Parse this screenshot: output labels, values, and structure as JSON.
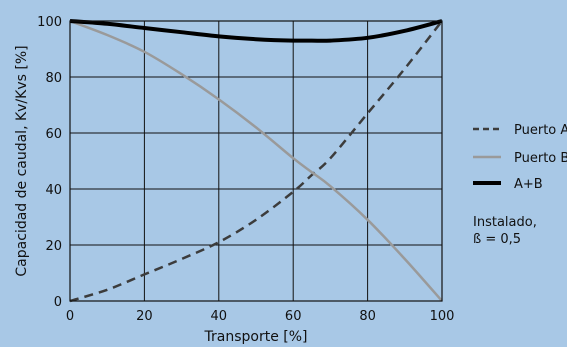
{
  "chart_data": {
    "type": "line",
    "xlabel": "Transporte [%]",
    "ylabel": "Capacidad de caudal, Kv/Kvs [%]",
    "xlim": [
      0,
      100
    ],
    "ylim": [
      0,
      100
    ],
    "xticks": [
      0,
      20,
      40,
      60,
      80,
      100
    ],
    "yticks": [
      0,
      20,
      40,
      60,
      80,
      100
    ],
    "grid": true,
    "legend_position": "right",
    "note": [
      "Instalado,",
      "ß = 0,5"
    ],
    "series": [
      {
        "name": "Puerto A",
        "color": "#3c3c3c",
        "style": "dashed",
        "x": [
          0,
          10,
          20,
          30,
          40,
          50,
          60,
          65,
          70,
          80,
          90,
          100
        ],
        "y": [
          0,
          4,
          9.5,
          15,
          21,
          29,
          39,
          45,
          51,
          67,
          83,
          100
        ]
      },
      {
        "name": "Puerto B",
        "color": "#9a9a9a",
        "style": "solid",
        "x": [
          0,
          10,
          20,
          30,
          40,
          50,
          60,
          65,
          70,
          80,
          90,
          100
        ],
        "y": [
          100,
          95,
          89,
          81,
          72,
          62,
          51,
          46,
          41,
          29,
          15,
          0
        ]
      },
      {
        "name": "A+B",
        "color": "#000000",
        "style": "solid",
        "x": [
          0,
          10,
          20,
          30,
          40,
          50,
          60,
          65,
          70,
          80,
          90,
          100
        ],
        "y": [
          100,
          99,
          97.5,
          96,
          94.5,
          93.5,
          93,
          93,
          93,
          94,
          96.5,
          100
        ]
      }
    ]
  }
}
